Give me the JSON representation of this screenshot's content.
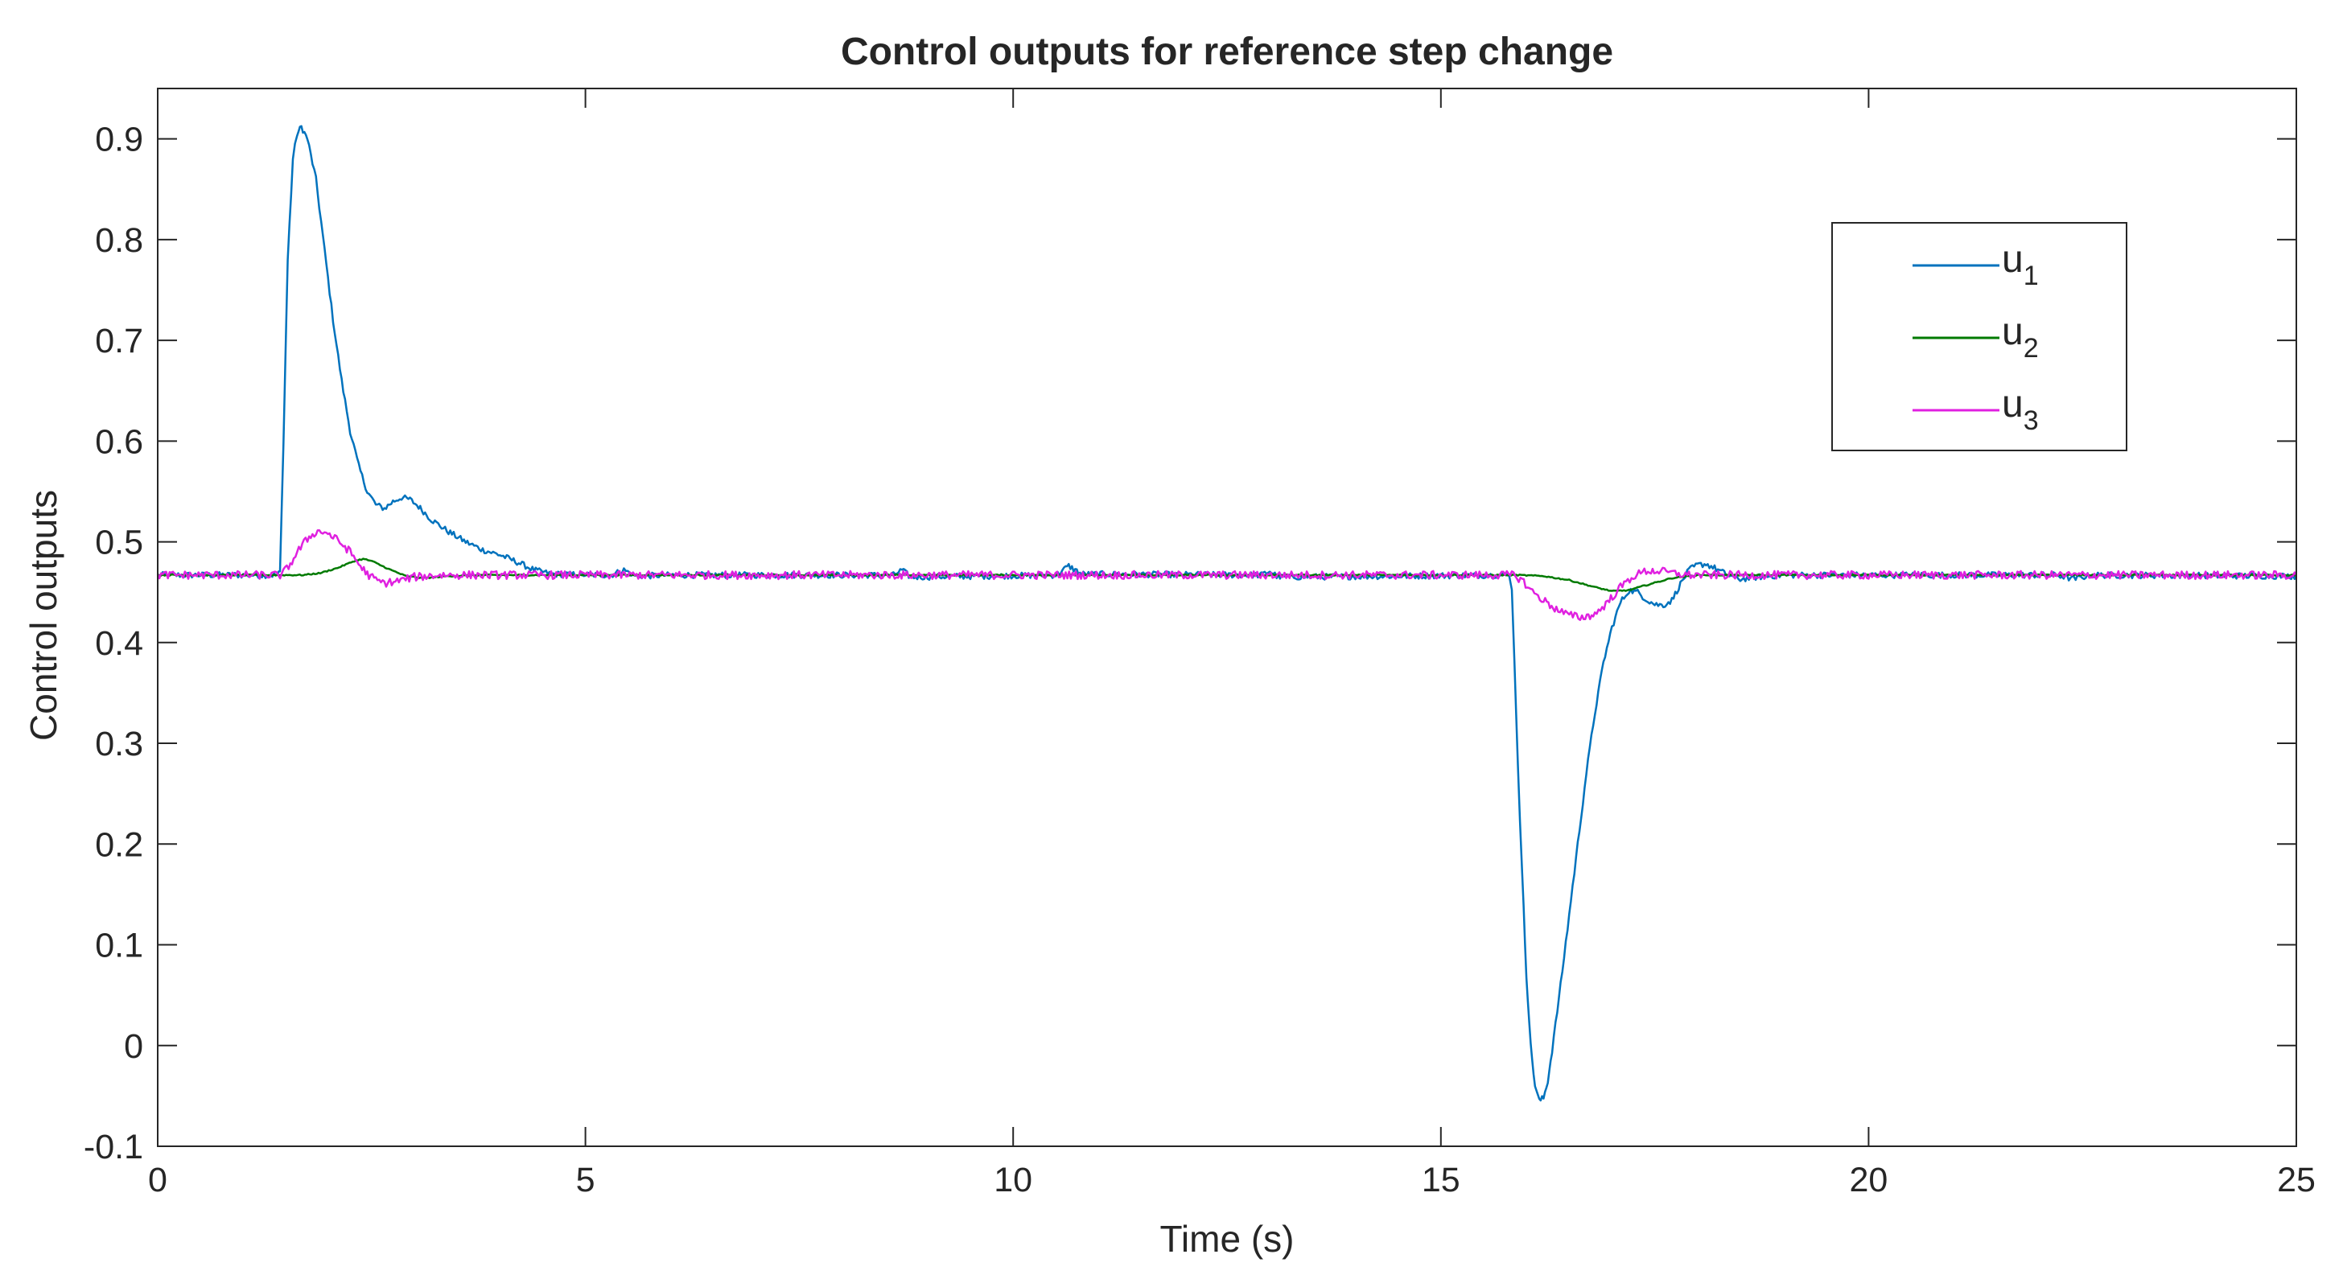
{
  "chart_data": {
    "type": "line",
    "title": "Control outputs for reference step change",
    "xlabel": "Time (s)",
    "ylabel": "Control outputs",
    "xlim": [
      0,
      25
    ],
    "ylim": [
      -0.1,
      0.95
    ],
    "xticks": [
      0,
      5,
      10,
      15,
      20,
      25
    ],
    "xtick_labels": [
      "0",
      "5",
      "10",
      "15",
      "20",
      "25"
    ],
    "yticks": [
      -0.1,
      0,
      0.1,
      0.2,
      0.3,
      0.4,
      0.5,
      0.6,
      0.7,
      0.8,
      0.9
    ],
    "ytick_labels": [
      "-0.1",
      "0",
      "0.1",
      "0.2",
      "0.3",
      "0.4",
      "0.5",
      "0.6",
      "0.7",
      "0.8",
      "0.9"
    ],
    "grid": false,
    "box": true,
    "legend": {
      "position": "top-right"
    },
    "series": [
      {
        "name": "u",
        "subscript": "1",
        "color": "#0072bd",
        "noise": 0.003,
        "points": [
          [
            0,
            0.467
          ],
          [
            1.4,
            0.467
          ],
          [
            1.43,
            0.47
          ],
          [
            1.47,
            0.6
          ],
          [
            1.52,
            0.78
          ],
          [
            1.58,
            0.88
          ],
          [
            1.63,
            0.905
          ],
          [
            1.68,
            0.912
          ],
          [
            1.75,
            0.9
          ],
          [
            1.85,
            0.86
          ],
          [
            1.95,
            0.79
          ],
          [
            2.05,
            0.72
          ],
          [
            2.15,
            0.66
          ],
          [
            2.25,
            0.61
          ],
          [
            2.35,
            0.575
          ],
          [
            2.45,
            0.55
          ],
          [
            2.55,
            0.537
          ],
          [
            2.65,
            0.533
          ],
          [
            2.75,
            0.54
          ],
          [
            2.85,
            0.544
          ],
          [
            2.95,
            0.542
          ],
          [
            3.05,
            0.535
          ],
          [
            3.2,
            0.522
          ],
          [
            3.4,
            0.51
          ],
          [
            3.6,
            0.5
          ],
          [
            3.8,
            0.492
          ],
          [
            4.0,
            0.487
          ],
          [
            4.2,
            0.48
          ],
          [
            4.4,
            0.472
          ],
          [
            4.6,
            0.468
          ],
          [
            5.3,
            0.467
          ],
          [
            5.45,
            0.472
          ],
          [
            5.6,
            0.466
          ],
          [
            6.0,
            0.467
          ],
          [
            8.6,
            0.467
          ],
          [
            8.7,
            0.472
          ],
          [
            8.8,
            0.465
          ],
          [
            10.5,
            0.467
          ],
          [
            10.65,
            0.476
          ],
          [
            10.8,
            0.468
          ],
          [
            12.9,
            0.467
          ],
          [
            13.0,
            0.471
          ],
          [
            13.1,
            0.465
          ],
          [
            15.8,
            0.467
          ],
          [
            15.83,
            0.455
          ],
          [
            15.86,
            0.38
          ],
          [
            15.9,
            0.28
          ],
          [
            15.95,
            0.17
          ],
          [
            16.0,
            0.07
          ],
          [
            16.05,
            0.0
          ],
          [
            16.1,
            -0.04
          ],
          [
            16.15,
            -0.055
          ],
          [
            16.2,
            -0.052
          ],
          [
            16.25,
            -0.035
          ],
          [
            16.3,
            -0.005
          ],
          [
            16.4,
            0.06
          ],
          [
            16.5,
            0.13
          ],
          [
            16.6,
            0.2
          ],
          [
            16.7,
            0.27
          ],
          [
            16.8,
            0.33
          ],
          [
            16.9,
            0.38
          ],
          [
            17.0,
            0.415
          ],
          [
            17.1,
            0.44
          ],
          [
            17.2,
            0.452
          ],
          [
            17.3,
            0.45
          ],
          [
            17.4,
            0.443
          ],
          [
            17.5,
            0.438
          ],
          [
            17.6,
            0.437
          ],
          [
            17.7,
            0.442
          ],
          [
            17.8,
            0.458
          ],
          [
            17.9,
            0.472
          ],
          [
            18.0,
            0.477
          ],
          [
            18.1,
            0.478
          ],
          [
            18.2,
            0.474
          ],
          [
            18.35,
            0.467
          ],
          [
            18.5,
            0.463
          ],
          [
            18.7,
            0.465
          ],
          [
            19.0,
            0.467
          ],
          [
            22.2,
            0.467
          ],
          [
            22.4,
            0.463
          ],
          [
            22.6,
            0.467
          ],
          [
            25,
            0.466
          ]
        ]
      },
      {
        "name": "u",
        "subscript": "2",
        "color": "#007a00",
        "noise": 0.0006,
        "points": [
          [
            0,
            0.467
          ],
          [
            1.7,
            0.467
          ],
          [
            1.9,
            0.469
          ],
          [
            2.1,
            0.474
          ],
          [
            2.3,
            0.481
          ],
          [
            2.4,
            0.483
          ],
          [
            2.5,
            0.481
          ],
          [
            2.7,
            0.473
          ],
          [
            2.9,
            0.466
          ],
          [
            3.1,
            0.464
          ],
          [
            3.4,
            0.466
          ],
          [
            3.8,
            0.467
          ],
          [
            15.9,
            0.467
          ],
          [
            16.2,
            0.466
          ],
          [
            16.5,
            0.462
          ],
          [
            16.8,
            0.455
          ],
          [
            17.0,
            0.451
          ],
          [
            17.2,
            0.452
          ],
          [
            17.4,
            0.457
          ],
          [
            17.7,
            0.464
          ],
          [
            18.0,
            0.467
          ],
          [
            25,
            0.467
          ]
        ]
      },
      {
        "name": "u",
        "subscript": "3",
        "color": "#e020e0",
        "noise": 0.004,
        "points": [
          [
            0,
            0.467
          ],
          [
            1.45,
            0.467
          ],
          [
            1.55,
            0.478
          ],
          [
            1.65,
            0.492
          ],
          [
            1.75,
            0.503
          ],
          [
            1.85,
            0.51
          ],
          [
            1.95,
            0.51
          ],
          [
            2.05,
            0.505
          ],
          [
            2.15,
            0.498
          ],
          [
            2.25,
            0.49
          ],
          [
            2.35,
            0.478
          ],
          [
            2.45,
            0.468
          ],
          [
            2.55,
            0.462
          ],
          [
            2.65,
            0.459
          ],
          [
            2.8,
            0.461
          ],
          [
            3.0,
            0.465
          ],
          [
            3.3,
            0.467
          ],
          [
            15.85,
            0.467
          ],
          [
            15.95,
            0.462
          ],
          [
            16.05,
            0.452
          ],
          [
            16.2,
            0.442
          ],
          [
            16.35,
            0.433
          ],
          [
            16.5,
            0.427
          ],
          [
            16.65,
            0.425
          ],
          [
            16.8,
            0.428
          ],
          [
            16.95,
            0.44
          ],
          [
            17.1,
            0.455
          ],
          [
            17.25,
            0.466
          ],
          [
            17.4,
            0.471
          ],
          [
            17.55,
            0.471
          ],
          [
            17.7,
            0.469
          ],
          [
            17.9,
            0.467
          ],
          [
            25,
            0.467
          ]
        ]
      }
    ]
  }
}
